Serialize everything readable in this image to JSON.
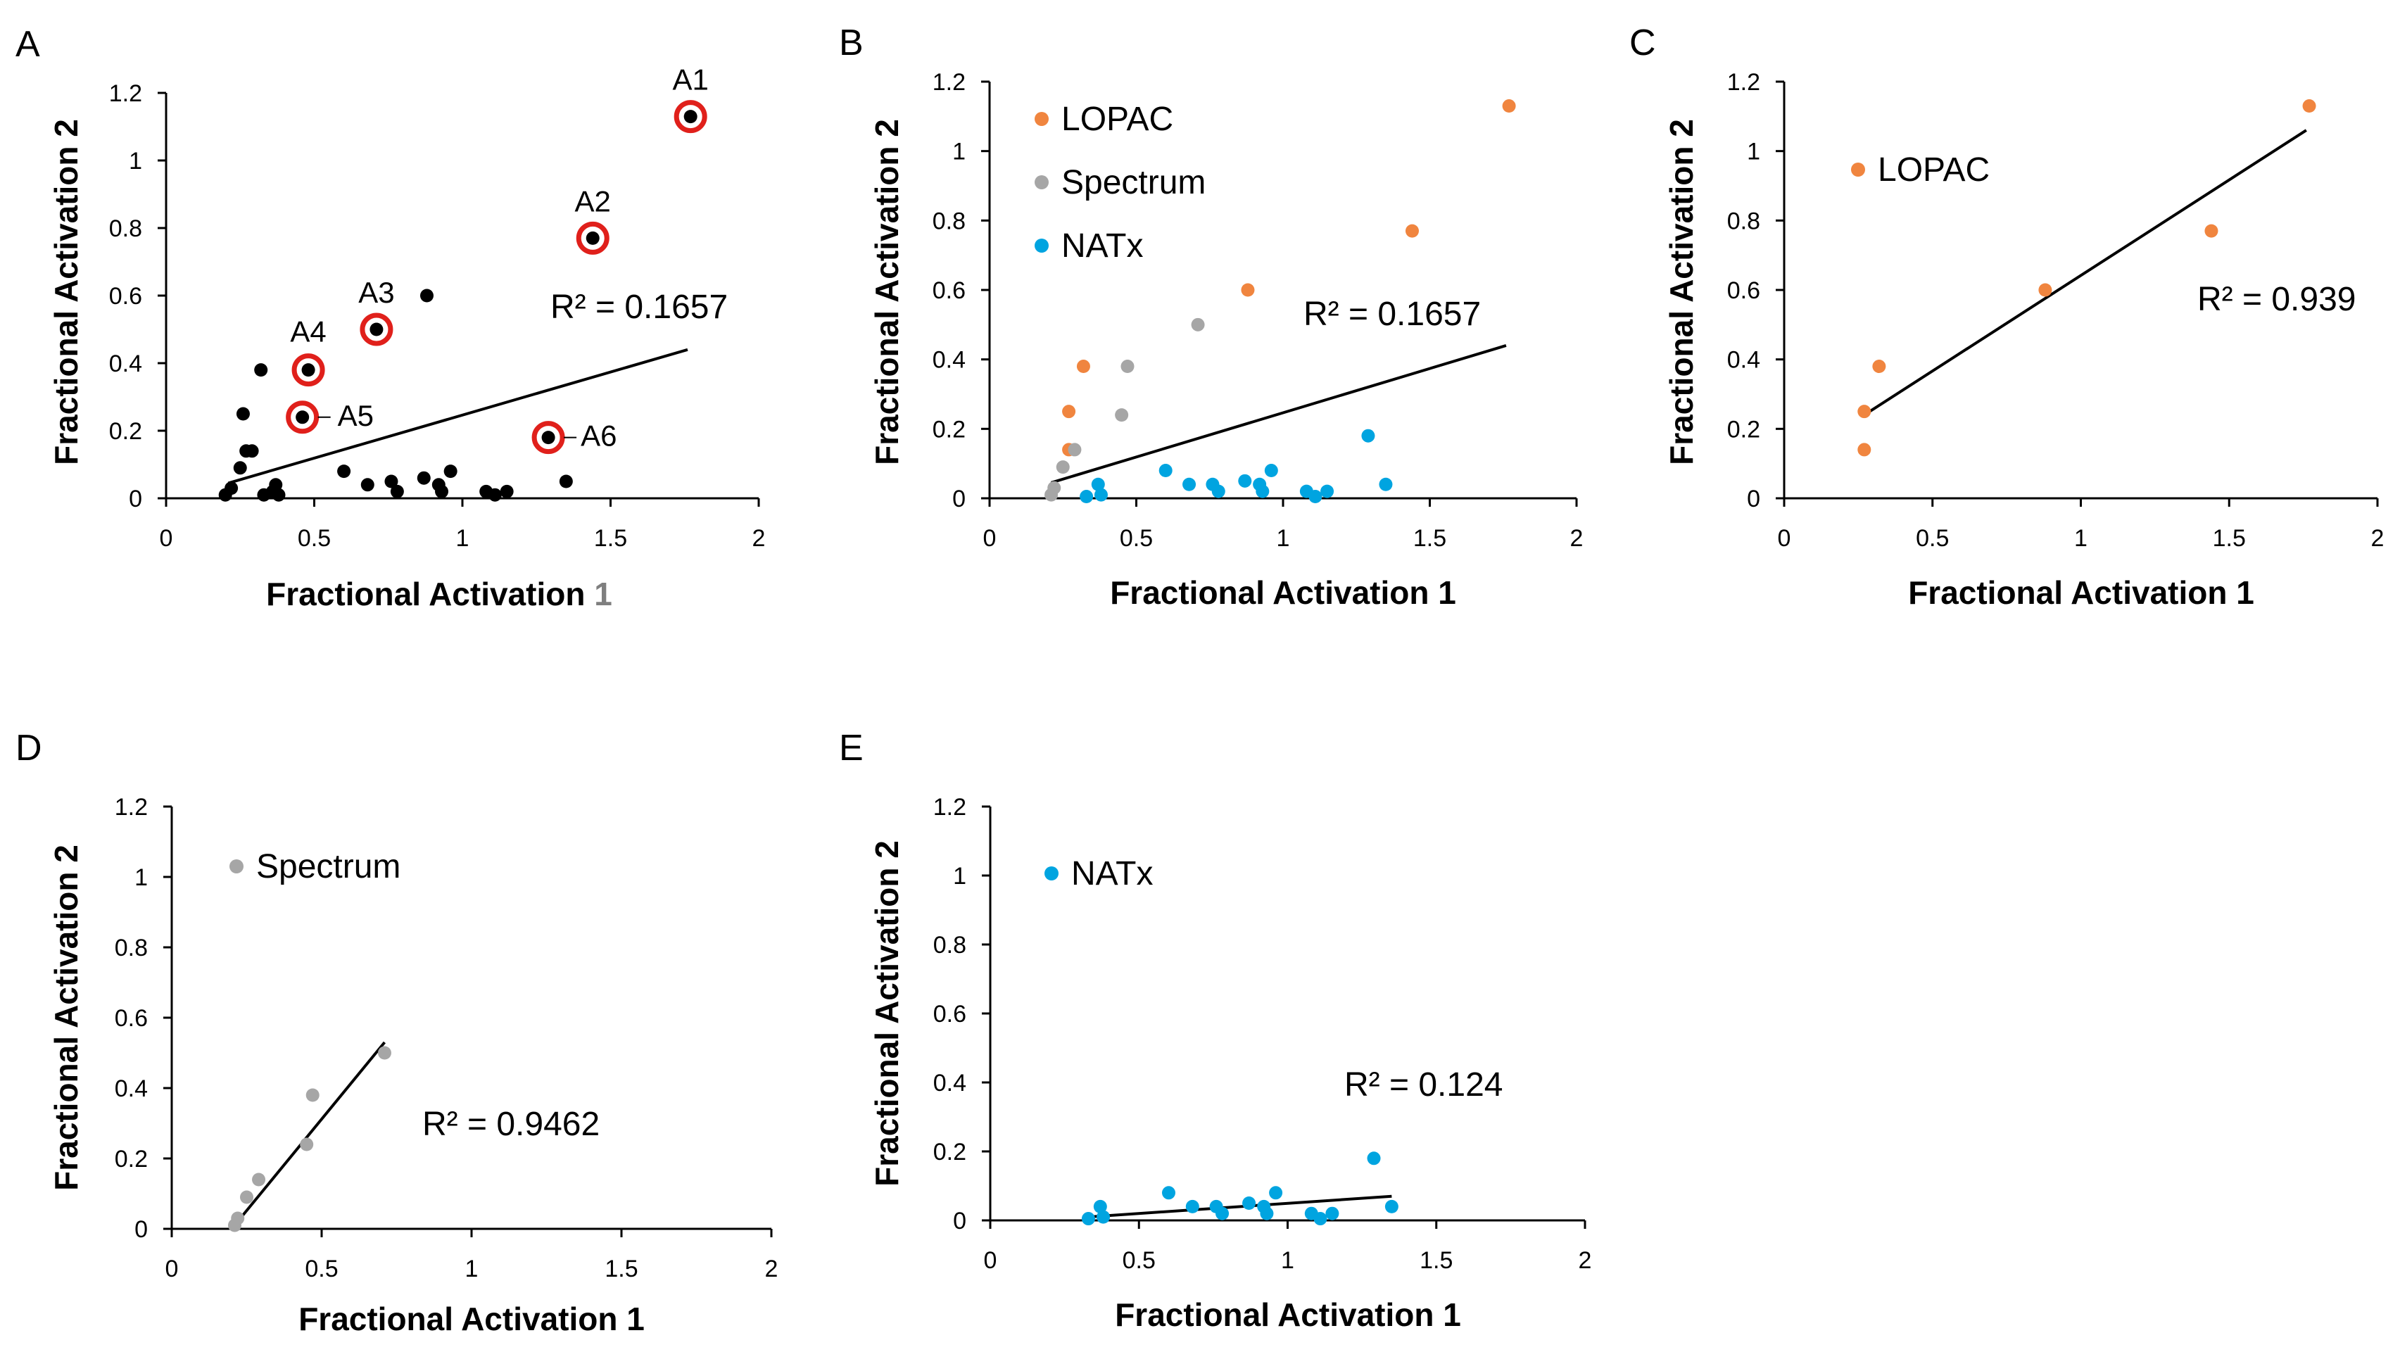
{
  "colors": {
    "lopac": "#F0853F",
    "spectrum": "#A6A6A6",
    "natx": "#00A4E0",
    "black": "#000000",
    "highlight": "#E0201B"
  },
  "legend": {
    "lopac": "LOPAC",
    "spectrum": "Spectrum",
    "natx": "NATx"
  },
  "chart_data": [
    {
      "id": "A",
      "type": "scatter",
      "panel_label": "A",
      "xlabel": "Fractional Activation 1",
      "xlabel_prefix": "Fractional Activation ",
      "xlabel_suffix": "1",
      "ylabel": "Fractional Activation 2",
      "xlim": [
        0,
        2
      ],
      "ylim": [
        0,
        1.2
      ],
      "xticks": [
        0,
        0.5,
        1,
        1.5,
        2
      ],
      "xtick_labels": [
        "0",
        "0.5",
        "1",
        "1.5",
        "2"
      ],
      "yticks": [
        0,
        0.2,
        0.4,
        0.6,
        0.8,
        1,
        1.2
      ],
      "ytick_labels": [
        "0",
        "0.2",
        "0.4",
        "0.6",
        "0.8",
        "1",
        "1.2"
      ],
      "r2_text": "R² = 0.1657",
      "trendline": {
        "x": [
          0.21,
          1.76
        ],
        "y": [
          0.045,
          0.44
        ]
      },
      "series": [
        {
          "name": "all",
          "color_key": "black",
          "points": [
            [
              0.2,
              0.01
            ],
            [
              0.22,
              0.03
            ],
            [
              0.25,
              0.09
            ],
            [
              0.26,
              0.25
            ],
            [
              0.27,
              0.14
            ],
            [
              0.29,
              0.14
            ],
            [
              0.32,
              0.38
            ],
            [
              0.33,
              0.01
            ],
            [
              0.36,
              0.02
            ],
            [
              0.37,
              0.04
            ],
            [
              0.38,
              0.01
            ],
            [
              0.6,
              0.08
            ],
            [
              0.68,
              0.04
            ],
            [
              0.76,
              0.05
            ],
            [
              0.78,
              0.02
            ],
            [
              0.87,
              0.06
            ],
            [
              0.88,
              0.6
            ],
            [
              0.92,
              0.04
            ],
            [
              0.93,
              0.02
            ],
            [
              0.96,
              0.08
            ],
            [
              1.08,
              0.02
            ],
            [
              1.11,
              0.01
            ],
            [
              1.15,
              0.02
            ],
            [
              1.35,
              0.05
            ]
          ]
        },
        {
          "name": "highlighted",
          "color_key": "black",
          "points": [
            [
              1.77,
              1.13
            ],
            [
              1.44,
              0.77
            ],
            [
              0.71,
              0.5
            ],
            [
              0.48,
              0.38
            ],
            [
              0.46,
              0.24
            ],
            [
              1.29,
              0.18
            ]
          ]
        }
      ],
      "annotations": [
        {
          "label": "A1",
          "x": 1.77,
          "y": 1.13
        },
        {
          "label": "A2",
          "x": 1.44,
          "y": 0.77
        },
        {
          "label": "A3",
          "x": 0.71,
          "y": 0.5
        },
        {
          "label": "A4",
          "x": 0.48,
          "y": 0.38
        },
        {
          "label": "A5",
          "x": 0.46,
          "y": 0.24
        },
        {
          "label": "A6",
          "x": 1.29,
          "y": 0.18
        }
      ]
    },
    {
      "id": "B",
      "type": "scatter",
      "panel_label": "B",
      "xlabel": "Fractional Activation 1",
      "ylabel": "Fractional Activation 2",
      "xlim": [
        0,
        2
      ],
      "ylim": [
        0,
        1.2
      ],
      "xticks": [
        0,
        0.5,
        1,
        1.5,
        2
      ],
      "xtick_labels": [
        "0",
        "0.5",
        "1",
        "1.5",
        "2"
      ],
      "yticks": [
        0,
        0.2,
        0.4,
        0.6,
        0.8,
        1,
        1.2
      ],
      "ytick_labels": [
        "0",
        "0.2",
        "0.4",
        "0.6",
        "0.8",
        "1",
        "1.2"
      ],
      "r2_text": "R² = 0.1657",
      "trendline": {
        "x": [
          0.21,
          1.76
        ],
        "y": [
          0.045,
          0.44
        ]
      },
      "legend": [
        "lopac",
        "spectrum",
        "natx"
      ],
      "series": [
        {
          "name": "LOPAC",
          "color_key": "lopac",
          "points": [
            [
              1.77,
              1.13
            ],
            [
              1.44,
              0.77
            ],
            [
              0.88,
              0.6
            ],
            [
              0.32,
              0.38
            ],
            [
              0.27,
              0.25
            ],
            [
              0.27,
              0.14
            ]
          ]
        },
        {
          "name": "Spectrum",
          "color_key": "spectrum",
          "points": [
            [
              0.71,
              0.5
            ],
            [
              0.47,
              0.38
            ],
            [
              0.45,
              0.24
            ],
            [
              0.29,
              0.14
            ],
            [
              0.25,
              0.09
            ],
            [
              0.22,
              0.03
            ],
            [
              0.21,
              0.01
            ]
          ]
        },
        {
          "name": "NATx",
          "color_key": "natx",
          "points": [
            [
              1.29,
              0.18
            ],
            [
              1.35,
              0.04
            ],
            [
              0.6,
              0.08
            ],
            [
              0.96,
              0.08
            ],
            [
              0.37,
              0.04
            ],
            [
              0.68,
              0.04
            ],
            [
              0.76,
              0.04
            ],
            [
              0.87,
              0.05
            ],
            [
              0.92,
              0.04
            ],
            [
              0.93,
              0.02
            ],
            [
              0.78,
              0.02
            ],
            [
              1.08,
              0.02
            ],
            [
              1.15,
              0.02
            ],
            [
              1.11,
              0.005
            ],
            [
              0.33,
              0.005
            ],
            [
              0.38,
              0.01
            ]
          ]
        }
      ]
    },
    {
      "id": "C",
      "type": "scatter",
      "panel_label": "C",
      "xlabel": "Fractional Activation 1",
      "ylabel": "Fractional Activation 2",
      "xlim": [
        0,
        2
      ],
      "ylim": [
        0,
        1.2
      ],
      "xticks": [
        0,
        0.5,
        1,
        1.5,
        2
      ],
      "xtick_labels": [
        "0",
        "0.5",
        "1",
        "1.5",
        "2"
      ],
      "yticks": [
        0,
        0.2,
        0.4,
        0.6,
        0.8,
        1,
        1.2
      ],
      "ytick_labels": [
        "0",
        "0.2",
        "0.4",
        "0.6",
        "0.8",
        "1",
        "1.2"
      ],
      "r2_text": "R² = 0.939",
      "trendline": {
        "x": [
          0.27,
          1.76
        ],
        "y": [
          0.24,
          1.06
        ]
      },
      "legend": [
        "lopac"
      ],
      "series": [
        {
          "name": "LOPAC",
          "color_key": "lopac",
          "points": [
            [
              1.77,
              1.13
            ],
            [
              1.44,
              0.77
            ],
            [
              0.88,
              0.6
            ],
            [
              0.32,
              0.38
            ],
            [
              0.27,
              0.25
            ],
            [
              0.27,
              0.14
            ]
          ]
        }
      ]
    },
    {
      "id": "D",
      "type": "scatter",
      "panel_label": "D",
      "xlabel": "Fractional Activation 1",
      "ylabel": "Fractional Activation 2",
      "xlim": [
        0,
        2
      ],
      "ylim": [
        0,
        1.2
      ],
      "xticks": [
        0,
        0.5,
        1,
        1.5,
        2
      ],
      "xtick_labels": [
        "0",
        "0.5",
        "1",
        "1.5",
        "2"
      ],
      "yticks": [
        0,
        0.2,
        0.4,
        0.6,
        0.8,
        1,
        1.2
      ],
      "ytick_labels": [
        "0",
        "0.2",
        "0.4",
        "0.6",
        "0.8",
        "1",
        "1.2"
      ],
      "r2_text": "R² = 0.9462",
      "trendline": {
        "x": [
          0.2,
          0.71
        ],
        "y": [
          0.0,
          0.53
        ]
      },
      "legend": [
        "spectrum"
      ],
      "series": [
        {
          "name": "Spectrum",
          "color_key": "spectrum",
          "points": [
            [
              0.71,
              0.5
            ],
            [
              0.47,
              0.38
            ],
            [
              0.45,
              0.24
            ],
            [
              0.29,
              0.14
            ],
            [
              0.25,
              0.09
            ],
            [
              0.22,
              0.03
            ],
            [
              0.21,
              0.01
            ]
          ]
        }
      ]
    },
    {
      "id": "E",
      "type": "scatter",
      "panel_label": "E",
      "xlabel": "Fractional Activation 1",
      "ylabel": "Fractional Activation 2",
      "xlim": [
        0,
        2
      ],
      "ylim": [
        0,
        1.2
      ],
      "xticks": [
        0,
        0.5,
        1,
        1.5,
        2
      ],
      "xtick_labels": [
        "0",
        "0.5",
        "1",
        "1.5",
        "2"
      ],
      "yticks": [
        0,
        0.2,
        0.4,
        0.6,
        0.8,
        1,
        1.2
      ],
      "ytick_labels": [
        "0",
        "0.2",
        "0.4",
        "0.6",
        "0.8",
        "1",
        "1.2"
      ],
      "r2_text": "R² = 0.124",
      "trendline": {
        "x": [
          0.33,
          1.35
        ],
        "y": [
          0.01,
          0.07
        ]
      },
      "legend": [
        "natx"
      ],
      "series": [
        {
          "name": "NATx",
          "color_key": "natx",
          "points": [
            [
              1.29,
              0.18
            ],
            [
              1.35,
              0.04
            ],
            [
              0.6,
              0.08
            ],
            [
              0.96,
              0.08
            ],
            [
              0.37,
              0.04
            ],
            [
              0.68,
              0.04
            ],
            [
              0.76,
              0.04
            ],
            [
              0.87,
              0.05
            ],
            [
              0.92,
              0.04
            ],
            [
              0.93,
              0.02
            ],
            [
              0.78,
              0.02
            ],
            [
              1.08,
              0.02
            ],
            [
              1.15,
              0.02
            ],
            [
              1.11,
              0.005
            ],
            [
              0.33,
              0.005
            ],
            [
              0.38,
              0.01
            ]
          ]
        }
      ]
    }
  ]
}
